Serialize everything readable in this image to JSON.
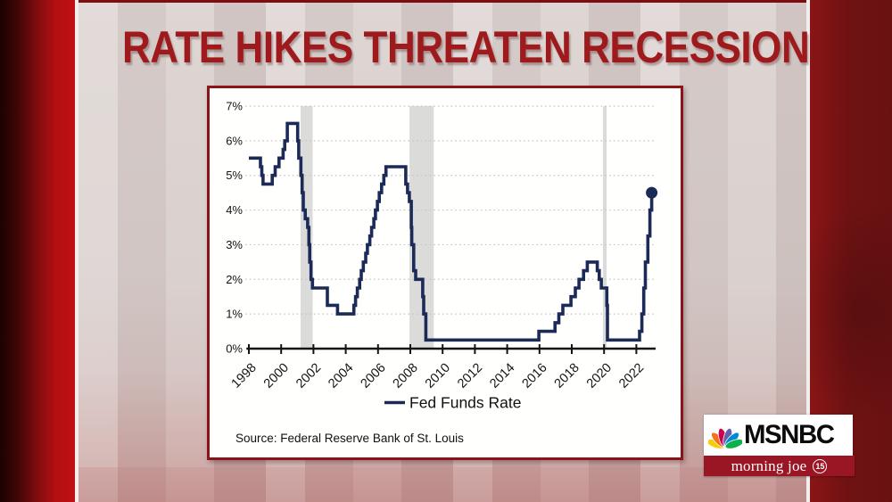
{
  "title": "RATE HIKES THREATEN RECESSION",
  "colors": {
    "headline_red": "#9e1a1c",
    "card_border_red": "#8c1418",
    "line_navy": "#1c2a58",
    "recession_band_gray": "#dbdbd9",
    "gridline_gray": "#c7c5c2",
    "axis_black": "#141414",
    "morning_joe_red": "#9b1624"
  },
  "chart_data": {
    "type": "line",
    "step": "after",
    "title": "",
    "xlabel": "",
    "ylabel": "",
    "xlim": [
      1997.85,
      2023.2
    ],
    "ylim": [
      0,
      7
    ],
    "grid": "horizontal-dotted",
    "x_tick_values": [
      1998,
      2000,
      2002,
      2004,
      2006,
      2008,
      2010,
      2012,
      2014,
      2016,
      2018,
      2020,
      2022
    ],
    "x_tick_labels": [
      "1998",
      "2000",
      "2002",
      "2004",
      "2006",
      "2008",
      "2010",
      "2012",
      "2014",
      "2016",
      "2018",
      "2020",
      "2022"
    ],
    "y_tick_values": [
      0,
      1,
      2,
      3,
      4,
      5,
      6,
      7
    ],
    "y_tick_labels": [
      "0%",
      "1%",
      "2%",
      "3%",
      "4%",
      "5%",
      "6%",
      "7%"
    ],
    "legend_label": "Fed Funds Rate",
    "legend_position": "bottom-center",
    "source_note": "Source: Federal Reserve Bank of St. Louis",
    "recession_bands": [
      [
        2001.2,
        2001.95
      ],
      [
        2007.95,
        2009.45
      ],
      [
        2019.93,
        2020.16
      ]
    ],
    "band_color": "#dbdbd9",
    "series": [
      {
        "name": "Fed Funds Rate",
        "color": "#1c2a58",
        "points": [
          [
            1998.0,
            5.5
          ],
          [
            1998.72,
            5.25
          ],
          [
            1998.8,
            5.0
          ],
          [
            1998.88,
            4.75
          ],
          [
            1999.45,
            5.0
          ],
          [
            1999.63,
            5.25
          ],
          [
            1999.87,
            5.5
          ],
          [
            2000.12,
            5.75
          ],
          [
            2000.22,
            6.0
          ],
          [
            2000.38,
            6.5
          ],
          [
            2001.02,
            6.0
          ],
          [
            2001.09,
            5.5
          ],
          [
            2001.22,
            5.0
          ],
          [
            2001.3,
            4.5
          ],
          [
            2001.37,
            4.0
          ],
          [
            2001.49,
            3.75
          ],
          [
            2001.64,
            3.5
          ],
          [
            2001.72,
            3.0
          ],
          [
            2001.77,
            2.5
          ],
          [
            2001.85,
            2.0
          ],
          [
            2001.94,
            1.75
          ],
          [
            2002.86,
            1.25
          ],
          [
            2003.49,
            1.0
          ],
          [
            2004.5,
            1.25
          ],
          [
            2004.61,
            1.5
          ],
          [
            2004.72,
            1.75
          ],
          [
            2004.86,
            2.0
          ],
          [
            2004.96,
            2.25
          ],
          [
            2005.09,
            2.5
          ],
          [
            2005.24,
            2.75
          ],
          [
            2005.34,
            3.0
          ],
          [
            2005.49,
            3.25
          ],
          [
            2005.6,
            3.5
          ],
          [
            2005.74,
            3.75
          ],
          [
            2005.84,
            4.0
          ],
          [
            2005.96,
            4.25
          ],
          [
            2006.08,
            4.5
          ],
          [
            2006.22,
            4.75
          ],
          [
            2006.36,
            5.0
          ],
          [
            2006.49,
            5.25
          ],
          [
            2007.72,
            4.75
          ],
          [
            2007.83,
            4.5
          ],
          [
            2007.94,
            4.25
          ],
          [
            2008.06,
            3.5
          ],
          [
            2008.09,
            3.0
          ],
          [
            2008.21,
            2.25
          ],
          [
            2008.33,
            2.0
          ],
          [
            2008.77,
            1.5
          ],
          [
            2008.83,
            1.0
          ],
          [
            2008.96,
            0.25
          ],
          [
            2015.96,
            0.5
          ],
          [
            2016.96,
            0.75
          ],
          [
            2017.2,
            1.0
          ],
          [
            2017.45,
            1.25
          ],
          [
            2017.95,
            1.5
          ],
          [
            2018.22,
            1.75
          ],
          [
            2018.45,
            2.0
          ],
          [
            2018.73,
            2.25
          ],
          [
            2018.96,
            2.5
          ],
          [
            2019.58,
            2.25
          ],
          [
            2019.7,
            2.0
          ],
          [
            2019.83,
            1.75
          ],
          [
            2020.17,
            1.25
          ],
          [
            2020.21,
            0.25
          ],
          [
            2022.2,
            0.5
          ],
          [
            2022.34,
            1.0
          ],
          [
            2022.46,
            1.75
          ],
          [
            2022.56,
            2.5
          ],
          [
            2022.71,
            3.25
          ],
          [
            2022.84,
            4.0
          ],
          [
            2022.95,
            4.5
          ]
        ]
      }
    ],
    "end_marker": {
      "x": 2022.95,
      "y": 4.5
    }
  },
  "branding": {
    "network": "MSNBC",
    "show": "morning joe",
    "badge": "15",
    "peacock_colors": [
      "#fccb00",
      "#f37021",
      "#cc004c",
      "#6460aa",
      "#0089d0",
      "#0db14b"
    ]
  }
}
